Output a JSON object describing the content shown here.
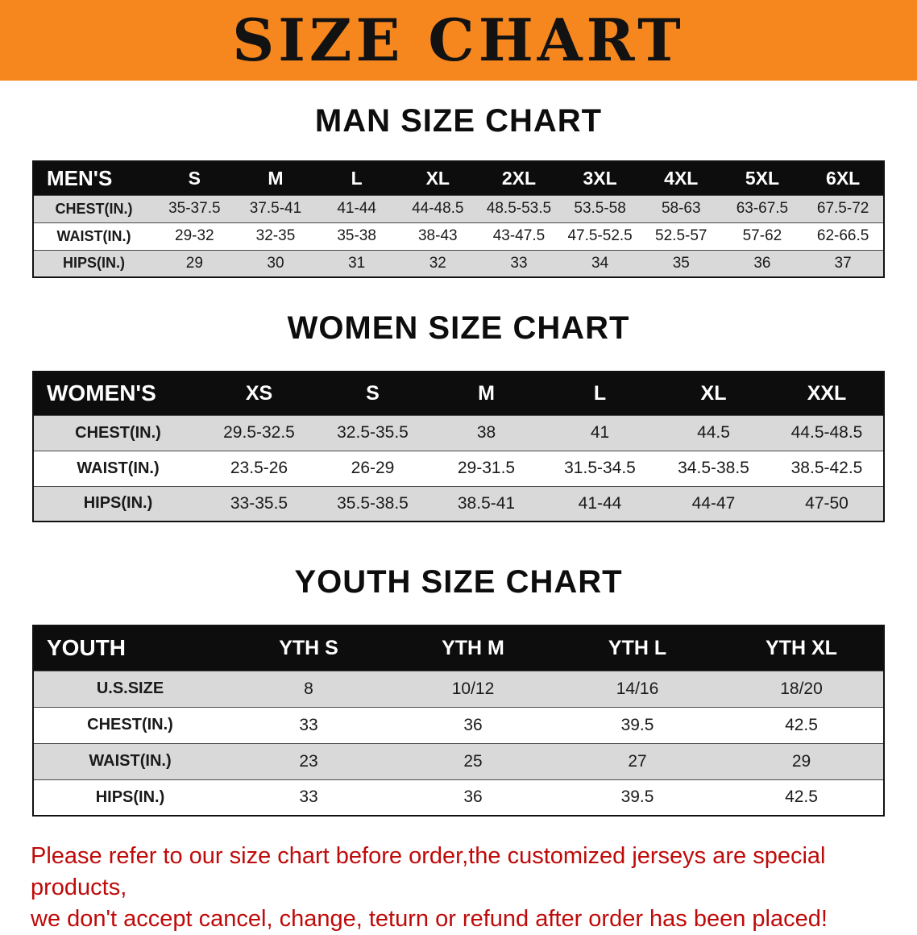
{
  "banner": {
    "title": "SIZE CHART",
    "bg_color": "#f6871f",
    "text_color": "#121212"
  },
  "sections": {
    "men_heading": "MAN SIZE CHART",
    "women_heading": "WOMEN SIZE CHART",
    "youth_heading": "YOUTH SIZE CHART"
  },
  "tables": {
    "men": {
      "header": [
        "MEN'S",
        "S",
        "M",
        "L",
        "XL",
        "2XL",
        "3XL",
        "4XL",
        "5XL",
        "6XL"
      ],
      "rows": [
        {
          "label": "CHEST(IN.)",
          "values": [
            "35-37.5",
            "37.5-41",
            "41-44",
            "44-48.5",
            "48.5-53.5",
            "53.5-58",
            "58-63",
            "63-67.5",
            "67.5-72"
          ]
        },
        {
          "label": "WAIST(IN.)",
          "values": [
            "29-32",
            "32-35",
            "35-38",
            "38-43",
            "43-47.5",
            "47.5-52.5",
            "52.5-57",
            "57-62",
            "62-66.5"
          ]
        },
        {
          "label": "HIPS(IN.)",
          "values": [
            "29",
            "30",
            "31",
            "32",
            "33",
            "34",
            "35",
            "36",
            "37"
          ]
        }
      ]
    },
    "women": {
      "header": [
        "WOMEN'S",
        "XS",
        "S",
        "M",
        "L",
        "XL",
        "XXL"
      ],
      "rows": [
        {
          "label": "CHEST(IN.)",
          "values": [
            "29.5-32.5",
            "32.5-35.5",
            "38",
            "41",
            "44.5",
            "44.5-48.5"
          ]
        },
        {
          "label": "WAIST(IN.)",
          "values": [
            "23.5-26",
            "26-29",
            "29-31.5",
            "31.5-34.5",
            "34.5-38.5",
            "38.5-42.5"
          ]
        },
        {
          "label": "HIPS(IN.)",
          "values": [
            "33-35.5",
            "35.5-38.5",
            "38.5-41",
            "41-44",
            "44-47",
            "47-50"
          ]
        }
      ]
    },
    "youth": {
      "header": [
        "YOUTH",
        "YTH S",
        "YTH M",
        "YTH L",
        "YTH XL"
      ],
      "rows": [
        {
          "label": "U.S.SIZE",
          "values": [
            "8",
            "10/12",
            "14/16",
            "18/20"
          ]
        },
        {
          "label": "CHEST(IN.)",
          "values": [
            "33",
            "36",
            "39.5",
            "42.5"
          ]
        },
        {
          "label": "WAIST(IN.)",
          "values": [
            "23",
            "25",
            "27",
            "29"
          ]
        },
        {
          "label": "HIPS(IN.)",
          "values": [
            "33",
            "36",
            "39.5",
            "42.5"
          ]
        }
      ]
    }
  },
  "disclaimer": {
    "line1": "Please refer to our size chart before order,the customized jerseys are special products,",
    "line2": "we don't accept cancel, change, teturn or refund after order has been placed!",
    "color": "#bf0a0a"
  }
}
